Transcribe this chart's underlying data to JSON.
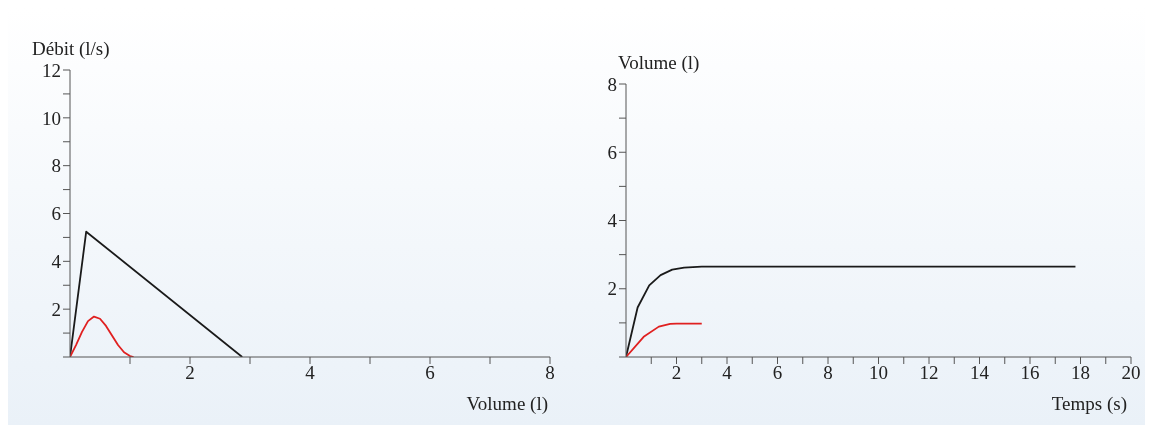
{
  "chart_data": [
    {
      "type": "line",
      "xlabel": "Volume (l)",
      "ylabel": "Débit (l/s)",
      "marker": "none",
      "line_style": "solid",
      "xlim": [
        0,
        8
      ],
      "xticks": [
        {
          "value": 1,
          "label": null
        },
        2,
        {
          "value": 3,
          "label": null
        },
        4,
        {
          "value": 5,
          "label": null
        },
        6,
        {
          "value": 7,
          "label": null
        },
        8
      ],
      "ylim": [
        0,
        12
      ],
      "yticks": [
        {
          "value": 0,
          "label": null
        },
        {
          "value": 1,
          "label": null
        },
        2,
        {
          "value": 3,
          "label": null
        },
        4,
        {
          "value": 5,
          "label": null
        },
        6,
        {
          "value": 7,
          "label": null
        },
        8,
        {
          "value": 9,
          "label": null
        },
        10,
        {
          "value": 11,
          "label": null
        },
        12
      ],
      "series": [
        {
          "color": "#1a1a1a",
          "x": [
            0,
            0.27,
            2.87
          ],
          "values": [
            0,
            5.24,
            0
          ]
        },
        {
          "color": "#e02020",
          "x": [
            0,
            0.1,
            0.2,
            0.3,
            0.4,
            0.5,
            0.6,
            0.7,
            0.8,
            0.9,
            1.0,
            1.06
          ],
          "values": [
            0,
            0.5,
            1.05,
            1.5,
            1.69,
            1.6,
            1.3,
            0.9,
            0.5,
            0.2,
            0.04,
            0
          ]
        }
      ]
    },
    {
      "type": "line",
      "xlabel": "Temps (s)",
      "ylabel": "Volume (l)",
      "marker": "none",
      "line_style": "solid",
      "xlim": [
        0,
        20
      ],
      "xticks": [
        {
          "value": 1,
          "label": null
        },
        2,
        {
          "value": 3,
          "label": null
        },
        4,
        {
          "value": 5,
          "label": null
        },
        6,
        {
          "value": 7,
          "label": null
        },
        8,
        {
          "value": 9,
          "label": null
        },
        10,
        {
          "value": 11,
          "label": null
        },
        12,
        {
          "value": 13,
          "label": null
        },
        14,
        {
          "value": 15,
          "label": null
        },
        16,
        {
          "value": 17,
          "label": null
        },
        18,
        {
          "value": 19,
          "label": null
        },
        20
      ],
      "ylim": [
        0,
        8
      ],
      "yticks": [
        {
          "value": 0,
          "label": null
        },
        {
          "value": 1,
          "label": null
        },
        2,
        {
          "value": 3,
          "label": null
        },
        4,
        {
          "value": 5,
          "label": null
        },
        6,
        {
          "value": 7,
          "label": null
        },
        8
      ],
      "series": [
        {
          "color": "#1a1a1a",
          "x": [
            0,
            0.46,
            0.92,
            1.37,
            1.83,
            2.3,
            3,
            17.8
          ],
          "values": [
            0,
            1.45,
            2.1,
            2.4,
            2.56,
            2.62,
            2.65,
            2.65
          ]
        },
        {
          "color": "#e02020",
          "x": [
            0,
            0.7,
            1.3,
            1.75,
            2.0,
            3.0
          ],
          "values": [
            0,
            0.59,
            0.89,
            0.97,
            0.98,
            0.98
          ]
        }
      ]
    }
  ]
}
